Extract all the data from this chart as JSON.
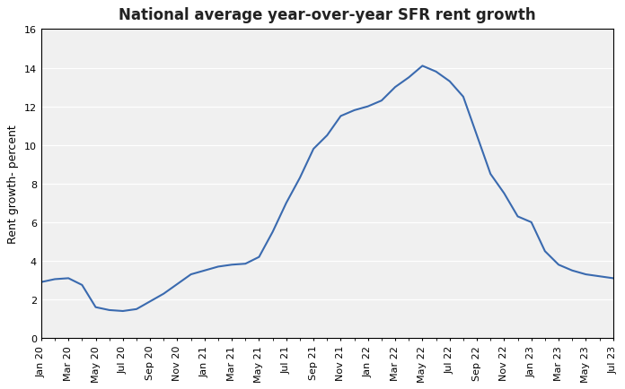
{
  "title": "National average year-over-year SFR rent growth",
  "ylabel": "Rent growth- percent",
  "line_color": "#3A6AAF",
  "plot_bg_color": "#F0F0F0",
  "fig_bg_color": "#FFFFFF",
  "ylim": [
    0,
    16
  ],
  "yticks": [
    0,
    2,
    4,
    6,
    8,
    10,
    12,
    14,
    16
  ],
  "values": [
    2.9,
    3.05,
    3.1,
    2.75,
    1.6,
    1.45,
    1.4,
    1.5,
    1.9,
    2.3,
    2.8,
    3.3,
    3.5,
    3.7,
    3.8,
    3.85,
    4.2,
    5.5,
    7.0,
    8.3,
    9.8,
    10.5,
    11.5,
    11.8,
    12.0,
    12.3,
    13.0,
    13.5,
    14.1,
    13.8,
    13.3,
    12.5,
    10.5,
    8.5,
    7.5,
    6.3,
    6.0,
    4.5,
    3.8,
    3.5,
    3.3,
    3.2,
    3.1
  ],
  "xtick_labels": [
    "Jan 20",
    "Mar 20",
    "May 20",
    "Jul 20",
    "Sep 20",
    "Nov 20",
    "Jan 21",
    "Mar 21",
    "May 21",
    "Jul 21",
    "Sep 21",
    "Nov 21",
    "Jan 22",
    "Mar 22",
    "May 22",
    "Jul 22",
    "Sep 22",
    "Nov 22",
    "Jan 23",
    "Mar 23",
    "May 23",
    "Jul 23"
  ],
  "xtick_positions": [
    0,
    2,
    4,
    6,
    8,
    10,
    12,
    14,
    16,
    18,
    20,
    22,
    24,
    26,
    28,
    30,
    32,
    34,
    36,
    38,
    40,
    42
  ],
  "title_fontsize": 12,
  "ylabel_fontsize": 9,
  "tick_fontsize": 8
}
